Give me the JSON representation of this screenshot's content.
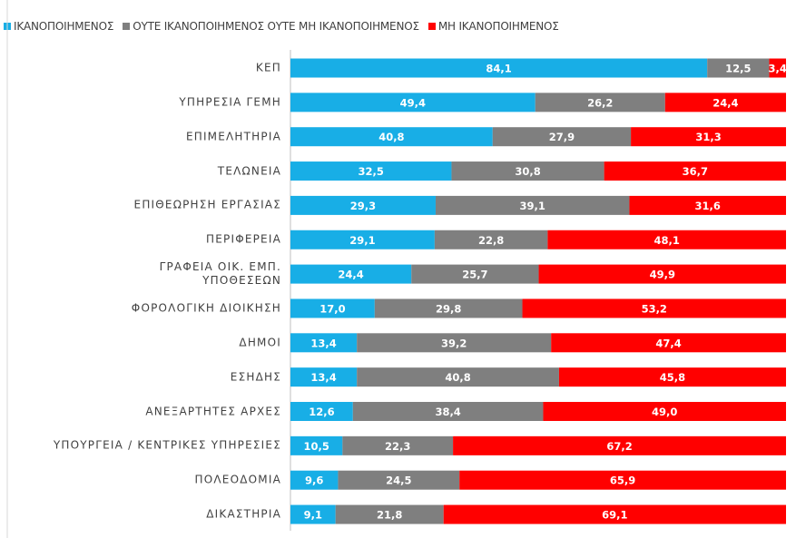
{
  "chart_data": {
    "type": "stacked-bar-horizontal",
    "categories": [
      "ΚΕΠ",
      "ΥΠΗΡΕΣΙΑ ΓΕΜΗ",
      "ΕΠΙΜΕΛΗΤΗΡΙΑ",
      "ΤΕΛΩΝΕΙΑ",
      "ΕΠΙΘΕΩΡΗΣΗ ΕΡΓΑΣΙΑΣ",
      "ΠΕΡΙΦΕΡΕΙΑ",
      "ΓΡΑΦΕΙΑ ΟΙΚ. ΕΜΠ.\nΥΠΟΘΕΣΕΩΝ",
      "ΦΟΡΟΛΟΓΙΚΗ ΔΙΟΙΚΗΣΗ",
      "ΔΗΜΟΙ",
      "ΕΣΗΔΗΣ",
      "ΑΝΕΞΑΡΤΗΤΕΣ ΑΡΧΕΣ",
      "ΥΠΟΥΡΓΕΙΑ / ΚΕΝΤΡΙΚΕΣ ΥΠΗΡΕΣΙΕΣ",
      "ΠΟΛΕΟΔΟΜΙΑ",
      "ΔΙΚΑΣΤΗΡΙΑ"
    ],
    "series": [
      {
        "name": "ΙΚΑΝΟΠΟΙΗΜΕΝΟΣ",
        "color": "#18aee6",
        "values": [
          84.1,
          49.4,
          40.8,
          32.5,
          29.3,
          29.1,
          24.4,
          17.0,
          13.4,
          13.4,
          12.6,
          10.5,
          9.6,
          9.1
        ],
        "value_labels": [
          "84,1",
          "49,4",
          "40,8",
          "32,5",
          "29,3",
          "29,1",
          "24,4",
          "17,0",
          "13,4",
          "13,4",
          "12,6",
          "10,5",
          "9,6",
          "9,1"
        ]
      },
      {
        "name": "ΟΥΤΕ ΙΚΑΝΟΠΟΙΗΜΕΝΟΣ ΟΥΤΕ ΜΗ ΙΚΑΝΟΠΟΙΗΜΕΝΟΣ",
        "color": "#7f7f7f",
        "values": [
          12.5,
          26.2,
          27.9,
          30.8,
          39.1,
          22.8,
          25.7,
          29.8,
          39.2,
          40.8,
          38.4,
          22.3,
          24.5,
          21.8
        ],
        "value_labels": [
          "12,5",
          "26,2",
          "27,9",
          "30,8",
          "39,1",
          "22,8",
          "25,7",
          "29,8",
          "39,2",
          "40,8",
          "38,4",
          "22,3",
          "24,5",
          "21,8"
        ]
      },
      {
        "name": "ΜΗ ΙΚΑΝΟΠΟΙΗΜΕΝΟΣ",
        "color": "#ff0000",
        "values": [
          3.4,
          24.4,
          31.3,
          36.7,
          31.6,
          48.1,
          49.9,
          53.2,
          47.4,
          45.8,
          49.0,
          67.2,
          65.9,
          69.1
        ],
        "value_labels": [
          "3,4",
          "24,4",
          "31,3",
          "36,7",
          "31,6",
          "48,1",
          "49,9",
          "53,2",
          "47,4",
          "45,8",
          "49,0",
          "67,2",
          "65,9",
          "69,1"
        ]
      }
    ],
    "xlim": [
      0,
      100
    ],
    "legend": "top"
  }
}
